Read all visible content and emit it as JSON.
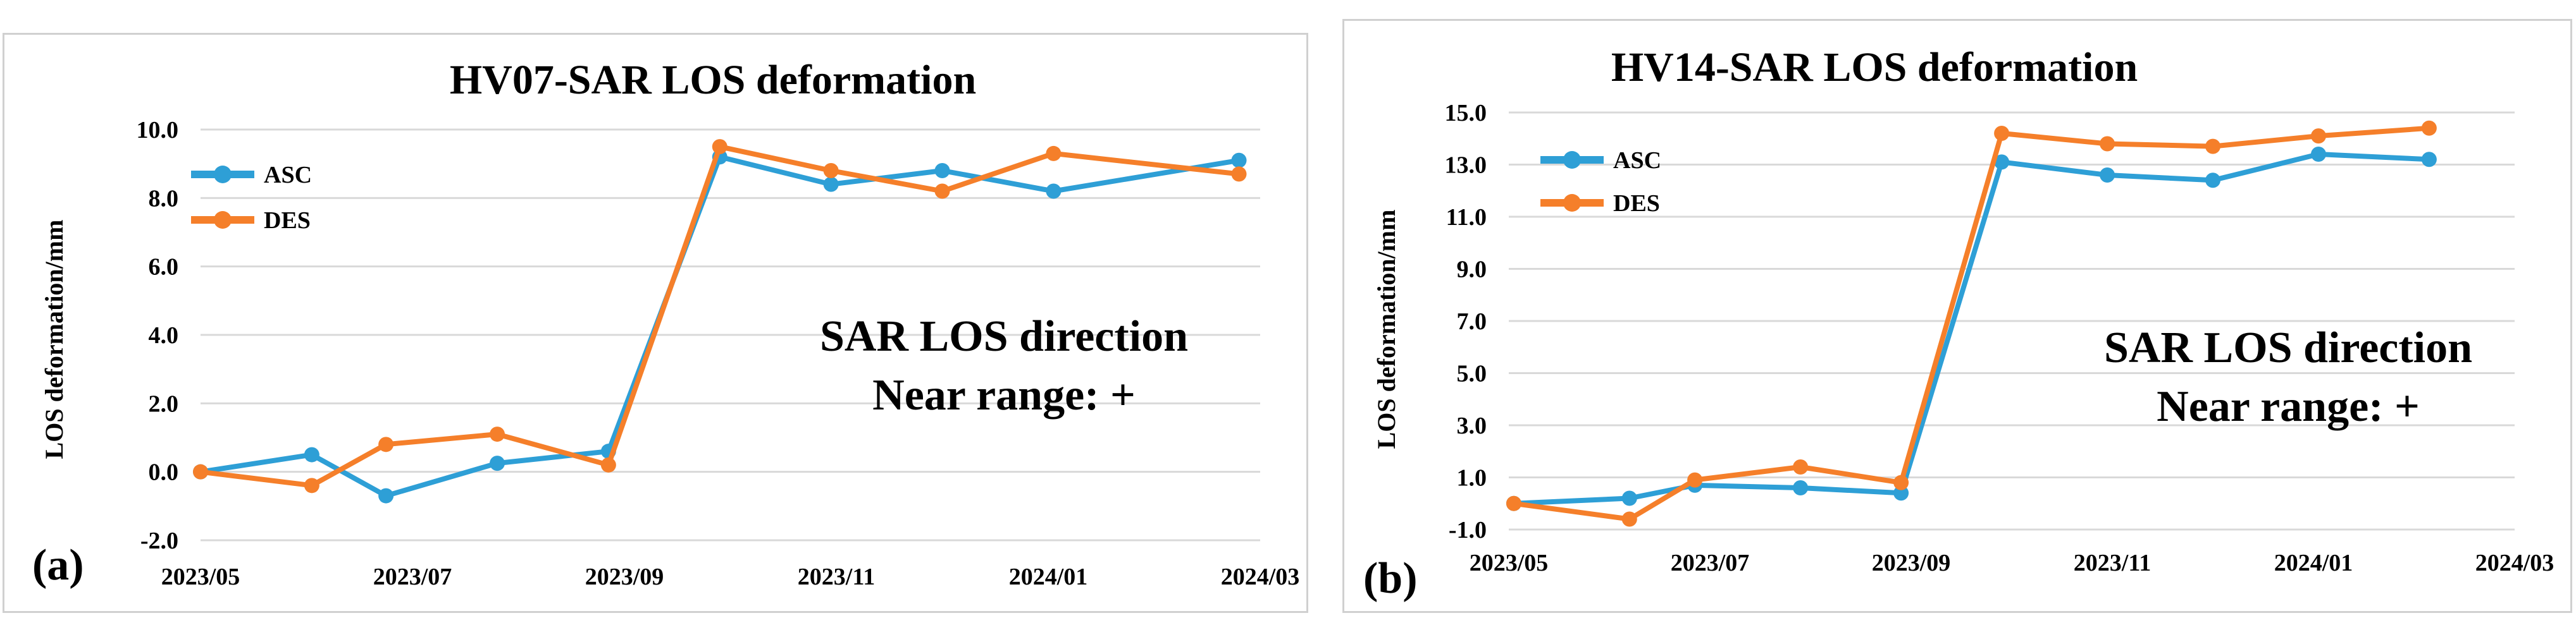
{
  "colors": {
    "asc": "#2e9fd6",
    "des": "#f57f2a",
    "grid": "#d9d9d9",
    "text": "#000000"
  },
  "chart_data": [
    {
      "type": "line",
      "panel_label": "(a)",
      "title": "HV07-SAR LOS deformation",
      "ylabel": "LOS deformation/mm",
      "xlabel": "",
      "ylim": [
        -2.0,
        10.0
      ],
      "yticks": [
        "-2.0",
        "0.0",
        "2.0",
        "4.0",
        "6.0",
        "8.0",
        "10.0"
      ],
      "xlim": [
        0,
        10
      ],
      "xticks": [
        {
          "label": "2023/05",
          "x": 0
        },
        {
          "label": "2023/07",
          "x": 2
        },
        {
          "label": "2023/09",
          "x": 4
        },
        {
          "label": "2023/11",
          "x": 6
        },
        {
          "label": "2024/01",
          "x": 8
        },
        {
          "label": "2024/03",
          "x": 10
        }
      ],
      "legend_position": "top-left",
      "series": [
        {
          "name": "ASC",
          "color_key": "asc",
          "x": [
            0,
            1.05,
            1.75,
            2.8,
            3.85,
            4.9,
            5.95,
            7.0,
            8.05,
            9.8
          ],
          "y": [
            0.0,
            0.5,
            -0.7,
            0.25,
            0.6,
            9.2,
            8.4,
            8.8,
            8.2,
            9.1
          ]
        },
        {
          "name": "DES",
          "color_key": "des",
          "x": [
            0,
            1.05,
            1.75,
            2.8,
            3.85,
            4.9,
            5.95,
            7.0,
            8.05,
            9.8
          ],
          "y": [
            0.0,
            -0.4,
            0.8,
            1.1,
            0.2,
            9.5,
            8.8,
            8.2,
            9.3,
            8.7
          ]
        }
      ],
      "annotations": [
        "SAR LOS direction",
        "Near range: +"
      ]
    },
    {
      "type": "line",
      "panel_label": "(b)",
      "title": "HV14-SAR LOS deformation",
      "ylabel": "LOS deformation/mm",
      "xlabel": "",
      "ylim": [
        -1.0,
        15.0
      ],
      "yticks": [
        "-1.0",
        "1.0",
        "3.0",
        "5.0",
        "7.0",
        "9.0",
        "11.0",
        "13.0",
        "15.0"
      ],
      "xlim": [
        0,
        10
      ],
      "xticks": [
        {
          "label": "2023/05",
          "x": 0
        },
        {
          "label": "2023/07",
          "x": 2
        },
        {
          "label": "2023/09",
          "x": 4
        },
        {
          "label": "2023/11",
          "x": 6
        },
        {
          "label": "2024/01",
          "x": 8
        },
        {
          "label": "2024/03",
          "x": 10
        }
      ],
      "legend_position": "top-left",
      "series": [
        {
          "name": "ASC",
          "color_key": "asc",
          "x": [
            0.05,
            1.2,
            1.85,
            2.9,
            3.9,
            4.9,
            5.95,
            7.0,
            8.05,
            9.15
          ],
          "y": [
            0.0,
            0.2,
            0.7,
            0.6,
            0.4,
            13.1,
            12.6,
            12.4,
            13.4,
            13.2
          ]
        },
        {
          "name": "DES",
          "color_key": "des",
          "x": [
            0.05,
            1.2,
            1.85,
            2.9,
            3.9,
            4.9,
            5.95,
            7.0,
            8.05,
            9.15
          ],
          "y": [
            0.0,
            -0.6,
            0.9,
            1.4,
            0.8,
            14.2,
            13.8,
            13.7,
            14.1,
            14.4
          ]
        }
      ],
      "annotations": [
        "SAR LOS direction",
        "Near range: +"
      ]
    }
  ]
}
